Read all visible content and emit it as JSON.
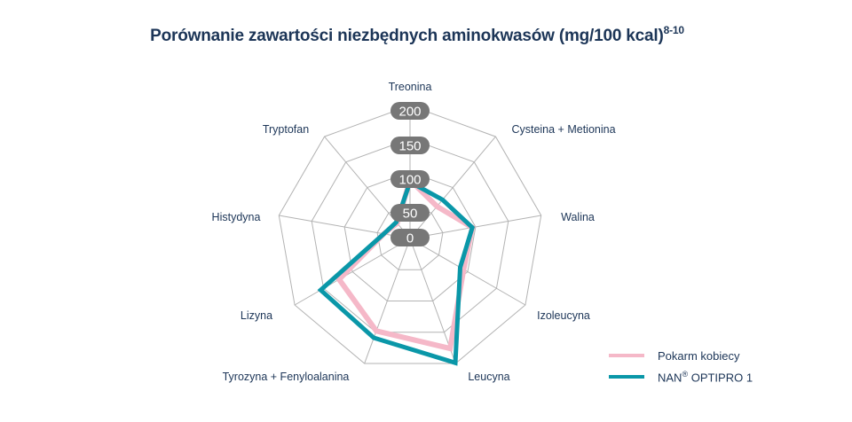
{
  "title": {
    "text": "Porównanie zawartości niezbędnych aminokwasów (mg/100 kcal)",
    "superscript": "8-10"
  },
  "legend": {
    "items": [
      {
        "label": "Pokarm kobiecy",
        "color": "#f5b8c8"
      },
      {
        "label": "NAN",
        "sup": "®",
        "suffix": " OPTIPRO 1",
        "color": "#0a97a8"
      }
    ]
  },
  "chart_data": {
    "type": "radar",
    "title": "Porównanie zawartości niezbędnych aminokwasów (mg/100 kcal)",
    "categories": [
      "Treonina",
      "Cysteina + Metionina",
      "Walina",
      "Izoleucyna",
      "Leucyna",
      "Tyrozyna + Fenyloalanina",
      "Lizyna",
      "Histydyna",
      "Tryptofan"
    ],
    "series": [
      {
        "name": "Pokarm kobiecy",
        "color": "#f5b8c8",
        "values": [
          88,
          63,
          95,
          93,
          176,
          148,
          123,
          40,
          30
        ]
      },
      {
        "name": "NAN® OPTIPRO 1",
        "color": "#0a97a8",
        "values": [
          85,
          76,
          95,
          87,
          199,
          159,
          155,
          40,
          32
        ]
      }
    ],
    "radial_ticks": [
      0,
      50,
      100,
      150,
      200
    ],
    "rlim": [
      0,
      200
    ],
    "grid": true,
    "legend_position": "bottom-right"
  },
  "colors": {
    "grid": "#b3b3b3",
    "tick_badge": "#777777",
    "label": "#1c3557"
  }
}
